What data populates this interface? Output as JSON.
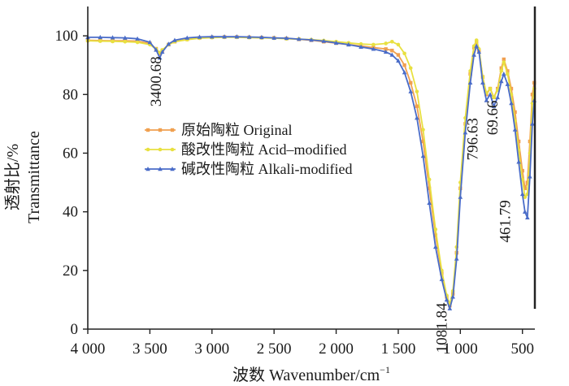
{
  "chart_data": {
    "type": "line",
    "title": "",
    "xlabel": "波数 Wavenumber/cm",
    "xlabel_sup": "−1",
    "ylabel_cn": "透射比/%",
    "ylabel_en": "Transmittance",
    "xlim": [
      4000,
      400
    ],
    "ylim": [
      0,
      110
    ],
    "x_ticks": [
      4000,
      3500,
      3000,
      2500,
      2000,
      1500,
      1000,
      500
    ],
    "x_tick_labels": [
      "4 000",
      "3 500",
      "3 000",
      "2 500",
      "2 000",
      "1 500",
      "1 000",
      "500"
    ],
    "y_ticks": [
      0,
      20,
      40,
      60,
      80,
      100
    ],
    "y_tick_labels": [
      "0",
      "20",
      "40",
      "60",
      "80",
      "100"
    ],
    "legend_position": "center-left",
    "annotations": [
      {
        "text": "3400.68",
        "x": 3410,
        "y": 93
      },
      {
        "text": "1081.84",
        "x": 1110,
        "y": 9
      },
      {
        "text": "796.63",
        "x": 860,
        "y": 72
      },
      {
        "text": "69.66",
        "x": 700,
        "y": 78
      },
      {
        "text": "461.79",
        "x": 600,
        "y": 44
      }
    ],
    "series": [
      {
        "name": "原始陶粒 Original",
        "color": "#f0a050",
        "marker": "square",
        "points": [
          [
            4000,
            98.5
          ],
          [
            3900,
            98.4
          ],
          [
            3800,
            98.3
          ],
          [
            3700,
            98.3
          ],
          [
            3600,
            98.2
          ],
          [
            3500,
            97.4
          ],
          [
            3450,
            95.6
          ],
          [
            3420,
            94.0
          ],
          [
            3400,
            95.0
          ],
          [
            3350,
            97.0
          ],
          [
            3300,
            98.0
          ],
          [
            3200,
            98.8
          ],
          [
            3100,
            99.3
          ],
          [
            3000,
            99.5
          ],
          [
            2900,
            99.6
          ],
          [
            2800,
            99.6
          ],
          [
            2700,
            99.5
          ],
          [
            2600,
            99.4
          ],
          [
            2500,
            99.3
          ],
          [
            2400,
            99.1
          ],
          [
            2300,
            98.8
          ],
          [
            2200,
            98.5
          ],
          [
            2100,
            98.0
          ],
          [
            2000,
            97.5
          ],
          [
            1900,
            97.0
          ],
          [
            1800,
            96.5
          ],
          [
            1700,
            96.0
          ],
          [
            1600,
            95.5
          ],
          [
            1550,
            95.0
          ],
          [
            1500,
            93.5
          ],
          [
            1450,
            90.0
          ],
          [
            1400,
            84.0
          ],
          [
            1350,
            76.0
          ],
          [
            1300,
            64.0
          ],
          [
            1250,
            48.0
          ],
          [
            1200,
            32.0
          ],
          [
            1150,
            19.0
          ],
          [
            1110,
            11.0
          ],
          [
            1085,
            8.0
          ],
          [
            1060,
            12.0
          ],
          [
            1030,
            26.0
          ],
          [
            1000,
            48.0
          ],
          [
            960,
            70.0
          ],
          [
            920,
            87.0
          ],
          [
            890,
            96.0
          ],
          [
            870,
            98.0
          ],
          [
            850,
            95.0
          ],
          [
            820,
            86.0
          ],
          [
            790,
            80.0
          ],
          [
            760,
            82.0
          ],
          [
            730,
            79.0
          ],
          [
            700,
            82.0
          ],
          [
            670,
            89.0
          ],
          [
            650,
            92.0
          ],
          [
            620,
            88.0
          ],
          [
            590,
            82.0
          ],
          [
            560,
            74.0
          ],
          [
            530,
            64.0
          ],
          [
            500,
            54.0
          ],
          [
            480,
            48.0
          ],
          [
            460,
            50.0
          ],
          [
            440,
            64.0
          ],
          [
            420,
            80.0
          ],
          [
            405,
            84.0
          ]
        ]
      },
      {
        "name": "酸改性陶粒 Acid–modified",
        "color": "#e8e040",
        "marker": "circle",
        "points": [
          [
            4000,
            98.3
          ],
          [
            3900,
            98.2
          ],
          [
            3800,
            98.1
          ],
          [
            3700,
            98.0
          ],
          [
            3600,
            97.8
          ],
          [
            3500,
            97.0
          ],
          [
            3450,
            95.5
          ],
          [
            3420,
            94.3
          ],
          [
            3400,
            95.2
          ],
          [
            3350,
            97.0
          ],
          [
            3300,
            98.0
          ],
          [
            3200,
            98.7
          ],
          [
            3100,
            99.2
          ],
          [
            3000,
            99.4
          ],
          [
            2900,
            99.5
          ],
          [
            2800,
            99.5
          ],
          [
            2700,
            99.4
          ],
          [
            2600,
            99.3
          ],
          [
            2500,
            99.2
          ],
          [
            2400,
            99.0
          ],
          [
            2300,
            98.9
          ],
          [
            2200,
            98.7
          ],
          [
            2100,
            98.4
          ],
          [
            2000,
            98.0
          ],
          [
            1900,
            97.6
          ],
          [
            1800,
            97.2
          ],
          [
            1700,
            97.0
          ],
          [
            1600,
            97.4
          ],
          [
            1550,
            98.0
          ],
          [
            1500,
            97.0
          ],
          [
            1450,
            94.0
          ],
          [
            1400,
            89.0
          ],
          [
            1350,
            81.0
          ],
          [
            1300,
            68.0
          ],
          [
            1250,
            51.0
          ],
          [
            1200,
            34.0
          ],
          [
            1150,
            20.0
          ],
          [
            1110,
            11.5
          ],
          [
            1085,
            8.5
          ],
          [
            1060,
            13.0
          ],
          [
            1030,
            28.0
          ],
          [
            1000,
            50.0
          ],
          [
            960,
            72.0
          ],
          [
            920,
            88.0
          ],
          [
            890,
            96.5
          ],
          [
            870,
            98.5
          ],
          [
            850,
            95.5
          ],
          [
            820,
            86.0
          ],
          [
            790,
            80.5
          ],
          [
            760,
            82.0
          ],
          [
            730,
            79.0
          ],
          [
            700,
            81.5
          ],
          [
            670,
            88.0
          ],
          [
            650,
            91.0
          ],
          [
            620,
            87.0
          ],
          [
            590,
            80.0
          ],
          [
            560,
            71.0
          ],
          [
            530,
            61.0
          ],
          [
            500,
            51.0
          ],
          [
            480,
            45.0
          ],
          [
            460,
            46.0
          ],
          [
            440,
            60.0
          ],
          [
            420,
            77.0
          ],
          [
            405,
            82.0
          ]
        ]
      },
      {
        "name": "碱改性陶粒 Alkali-modified",
        "color": "#4a6cc8",
        "marker": "triangle",
        "points": [
          [
            4000,
            99.5
          ],
          [
            3900,
            99.5
          ],
          [
            3800,
            99.4
          ],
          [
            3700,
            99.3
          ],
          [
            3600,
            99.0
          ],
          [
            3500,
            97.8
          ],
          [
            3450,
            95.2
          ],
          [
            3420,
            92.5
          ],
          [
            3400,
            94.5
          ],
          [
            3350,
            97.2
          ],
          [
            3300,
            98.5
          ],
          [
            3200,
            99.3
          ],
          [
            3100,
            99.6
          ],
          [
            3000,
            99.7
          ],
          [
            2900,
            99.7
          ],
          [
            2800,
            99.7
          ],
          [
            2700,
            99.6
          ],
          [
            2600,
            99.5
          ],
          [
            2500,
            99.3
          ],
          [
            2400,
            99.2
          ],
          [
            2300,
            98.9
          ],
          [
            2200,
            98.6
          ],
          [
            2100,
            98.2
          ],
          [
            2000,
            97.6
          ],
          [
            1900,
            97.0
          ],
          [
            1800,
            96.2
          ],
          [
            1700,
            95.5
          ],
          [
            1600,
            94.5
          ],
          [
            1550,
            93.5
          ],
          [
            1500,
            91.5
          ],
          [
            1450,
            87.5
          ],
          [
            1400,
            81.0
          ],
          [
            1350,
            72.0
          ],
          [
            1300,
            59.0
          ],
          [
            1250,
            43.0
          ],
          [
            1200,
            28.0
          ],
          [
            1150,
            17.0
          ],
          [
            1110,
            10.0
          ],
          [
            1085,
            7.0
          ],
          [
            1060,
            11.0
          ],
          [
            1030,
            24.0
          ],
          [
            1000,
            45.0
          ],
          [
            960,
            67.0
          ],
          [
            920,
            84.0
          ],
          [
            890,
            93.5
          ],
          [
            870,
            96.5
          ],
          [
            850,
            94.5
          ],
          [
            820,
            84.0
          ],
          [
            790,
            78.0
          ],
          [
            760,
            80.0
          ],
          [
            730,
            76.0
          ],
          [
            700,
            79.0
          ],
          [
            670,
            84.5
          ],
          [
            650,
            87.0
          ],
          [
            620,
            83.5
          ],
          [
            590,
            77.0
          ],
          [
            560,
            68.0
          ],
          [
            530,
            57.0
          ],
          [
            500,
            46.0
          ],
          [
            480,
            40.0
          ],
          [
            460,
            38.0
          ],
          [
            440,
            52.0
          ],
          [
            420,
            70.0
          ],
          [
            405,
            78.0
          ]
        ]
      }
    ]
  }
}
